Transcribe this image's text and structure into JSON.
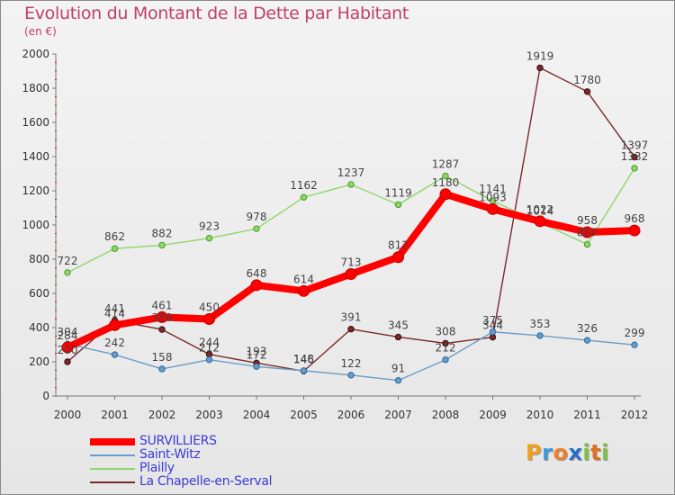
{
  "title": "Evolution du Montant de la Dette par Habitant",
  "subtitle": "(en €)",
  "logo": {
    "text": "Proxiti",
    "letters": [
      {
        "ch": "P",
        "color": "#f0a020"
      },
      {
        "ch": "r",
        "color": "#3a9ad9"
      },
      {
        "ch": "o",
        "color": "#f08030"
      },
      {
        "ch": "x",
        "color": "#2a6fc9"
      },
      {
        "ch": "i",
        "color": "#7cc243"
      },
      {
        "ch": "t",
        "color": "#e07020"
      },
      {
        "ch": "i",
        "color": "#7cc243"
      }
    ]
  },
  "chart_data": {
    "type": "line",
    "title": "Evolution du Montant de la Dette par Habitant",
    "subtitle": "(en €)",
    "x": [
      "2000",
      "2001",
      "2002",
      "2003",
      "2004",
      "2005",
      "2006",
      "2007",
      "2008",
      "2009",
      "2010",
      "2011",
      "2012"
    ],
    "y_ticks": [
      "0",
      "200",
      "400",
      "600",
      "800",
      "1000",
      "1200",
      "1400",
      "1600",
      "1800",
      "2000"
    ],
    "ylim": [
      0,
      2000
    ],
    "grid": false,
    "legend_position": "bottom-left",
    "series": [
      {
        "name": "SURVILLIERS",
        "color": "#ff0000",
        "values": [
          284,
          414,
          461,
          450,
          648,
          614,
          713,
          812,
          1180,
          1093,
          1022,
          958,
          968
        ]
      },
      {
        "name": "Saint-Witz",
        "color": "#6a9cc8",
        "values": [
          304,
          242,
          158,
          212,
          172,
          148,
          122,
          91,
          212,
          375,
          353,
          326,
          299
        ]
      },
      {
        "name": "Plailly",
        "color": "#8fd66a",
        "values": [
          722,
          862,
          882,
          923,
          978,
          1162,
          1237,
          1119,
          1287,
          1141,
          1014,
          887,
          1332
        ]
      },
      {
        "name": "La Chapelle-en-Serval",
        "color": "#7a2a2a",
        "values": [
          200,
          441,
          389,
          244,
          193,
          146,
          391,
          345,
          308,
          344,
          1919,
          1780,
          1397
        ]
      }
    ],
    "labels": [
      {
        "series": 0,
        "text": [
          "284",
          "414",
          "461",
          "450",
          "648",
          "614",
          "713",
          "812",
          "1180",
          "1093",
          "1022",
          "958",
          "968"
        ]
      },
      {
        "series": 1,
        "text": [
          "304",
          "242",
          "158",
          "212",
          "172",
          "148",
          "122",
          "91",
          "212",
          "375",
          "353",
          "326",
          "299"
        ]
      },
      {
        "series": 2,
        "text": [
          "722",
          "862",
          "882",
          "923",
          "978",
          "1162",
          "1237",
          "1119",
          "1287",
          "1141",
          "1014",
          "887",
          "1332"
        ]
      },
      {
        "series": 3,
        "text": [
          "200",
          "441",
          "389",
          "244",
          "193",
          "146",
          "391",
          "345",
          "308",
          "344",
          "1919",
          "1780",
          "1397"
        ]
      }
    ]
  }
}
